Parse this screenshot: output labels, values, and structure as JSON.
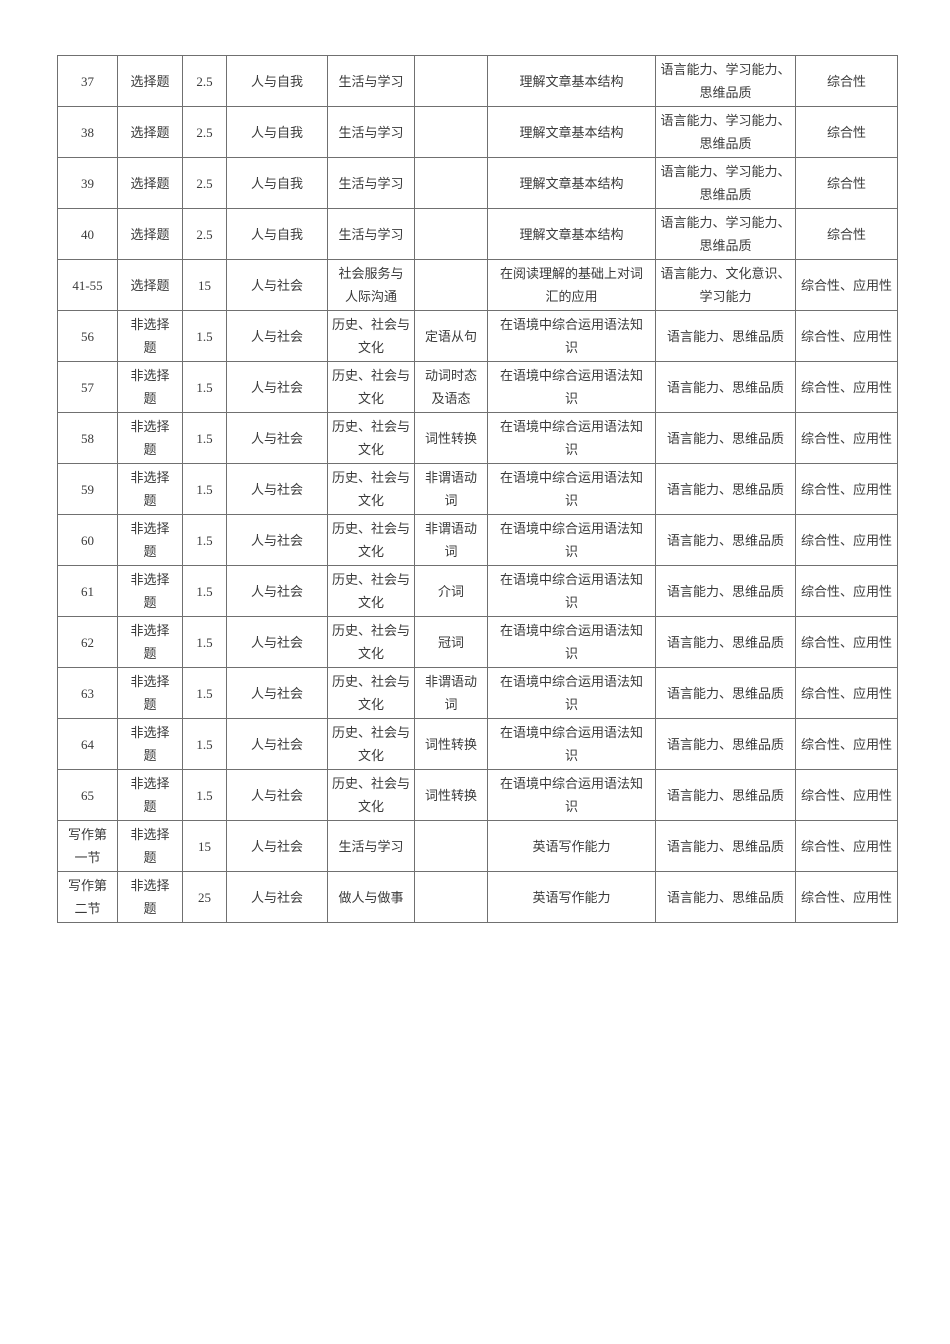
{
  "page": {
    "background": "#ffffff",
    "text_color": "#3a3a3a",
    "border_color": "#707070"
  },
  "table": {
    "rows": [
      {
        "cells": [
          "37",
          "选择题",
          "2.5",
          "人与自我",
          "生活与学习",
          "",
          "理解文章基本结构",
          "语言能力、学习能力、\n思维品质",
          "综合性"
        ]
      },
      {
        "cells": [
          "38",
          "选择题",
          "2.5",
          "人与自我",
          "生活与学习",
          "",
          "理解文章基本结构",
          "语言能力、学习能力、\n思维品质",
          "综合性"
        ]
      },
      {
        "cells": [
          "39",
          "选择题",
          "2.5",
          "人与自我",
          "生活与学习",
          "",
          "理解文章基本结构",
          "语言能力、学习能力、\n思维品质",
          "综合性"
        ]
      },
      {
        "cells": [
          "40",
          "选择题",
          "2.5",
          "人与自我",
          "生活与学习",
          "",
          "理解文章基本结构",
          "语言能力、学习能力、\n思维品质",
          "综合性"
        ]
      },
      {
        "cells": [
          "41-55",
          "选择题",
          "15",
          "人与社会",
          "社会服务与\n人际沟通",
          "",
          "在阅读理解的基础上对词\n汇的应用",
          "语言能力、文化意识、\n学习能力",
          "综合性、应用性"
        ]
      },
      {
        "cells": [
          "56",
          "非选择\n题",
          "1.5",
          "人与社会",
          "历史、社会与\n文化",
          "定语从句",
          "在语境中综合运用语法知\n识",
          "语言能力、思维品质",
          "综合性、应用性"
        ]
      },
      {
        "cells": [
          "57",
          "非选择\n题",
          "1.5",
          "人与社会",
          "历史、社会与\n文化",
          "动词时态\n及语态",
          "在语境中综合运用语法知\n识",
          "语言能力、思维品质",
          "综合性、应用性"
        ]
      },
      {
        "cells": [
          "58",
          "非选择\n题",
          "1.5",
          "人与社会",
          "历史、社会与\n文化",
          "词性转换",
          "在语境中综合运用语法知\n识",
          "语言能力、思维品质",
          "综合性、应用性"
        ]
      },
      {
        "cells": [
          "59",
          "非选择\n题",
          "1.5",
          "人与社会",
          "历史、社会与\n文化",
          "非谓语动\n词",
          "在语境中综合运用语法知\n识",
          "语言能力、思维品质",
          "综合性、应用性"
        ]
      },
      {
        "cells": [
          "60",
          "非选择\n题",
          "1.5",
          "人与社会",
          "历史、社会与\n文化",
          "非谓语动\n词",
          "在语境中综合运用语法知\n识",
          "语言能力、思维品质",
          "综合性、应用性"
        ]
      },
      {
        "cells": [
          "61",
          "非选择\n题",
          "1.5",
          "人与社会",
          "历史、社会与\n文化",
          "介词",
          "在语境中综合运用语法知\n识",
          "语言能力、思维品质",
          "综合性、应用性"
        ]
      },
      {
        "cells": [
          "62",
          "非选择\n题",
          "1.5",
          "人与社会",
          "历史、社会与\n文化",
          "冠词",
          "在语境中综合运用语法知\n识",
          "语言能力、思维品质",
          "综合性、应用性"
        ]
      },
      {
        "cells": [
          "63",
          "非选择\n题",
          "1.5",
          "人与社会",
          "历史、社会与\n文化",
          "非谓语动\n词",
          "在语境中综合运用语法知\n识",
          "语言能力、思维品质",
          "综合性、应用性"
        ]
      },
      {
        "cells": [
          "64",
          "非选择\n题",
          "1.5",
          "人与社会",
          "历史、社会与\n文化",
          "词性转换",
          "在语境中综合运用语法知\n识",
          "语言能力、思维品质",
          "综合性、应用性"
        ]
      },
      {
        "cells": [
          "65",
          "非选择\n题",
          "1.5",
          "人与社会",
          "历史、社会与\n文化",
          "词性转换",
          "在语境中综合运用语法知\n识",
          "语言能力、思维品质",
          "综合性、应用性"
        ]
      },
      {
        "cells": [
          "写作第\n一节",
          "非选择\n题",
          "15",
          "人与社会",
          "生活与学习",
          "",
          "英语写作能力",
          "语言能力、思维品质",
          "综合性、应用性"
        ]
      },
      {
        "cells": [
          "写作第\n二节",
          "非选择\n题",
          "25",
          "人与社会",
          "做人与做事",
          "",
          "英语写作能力",
          "语言能力、思维品质",
          "综合性、应用性"
        ]
      }
    ]
  }
}
